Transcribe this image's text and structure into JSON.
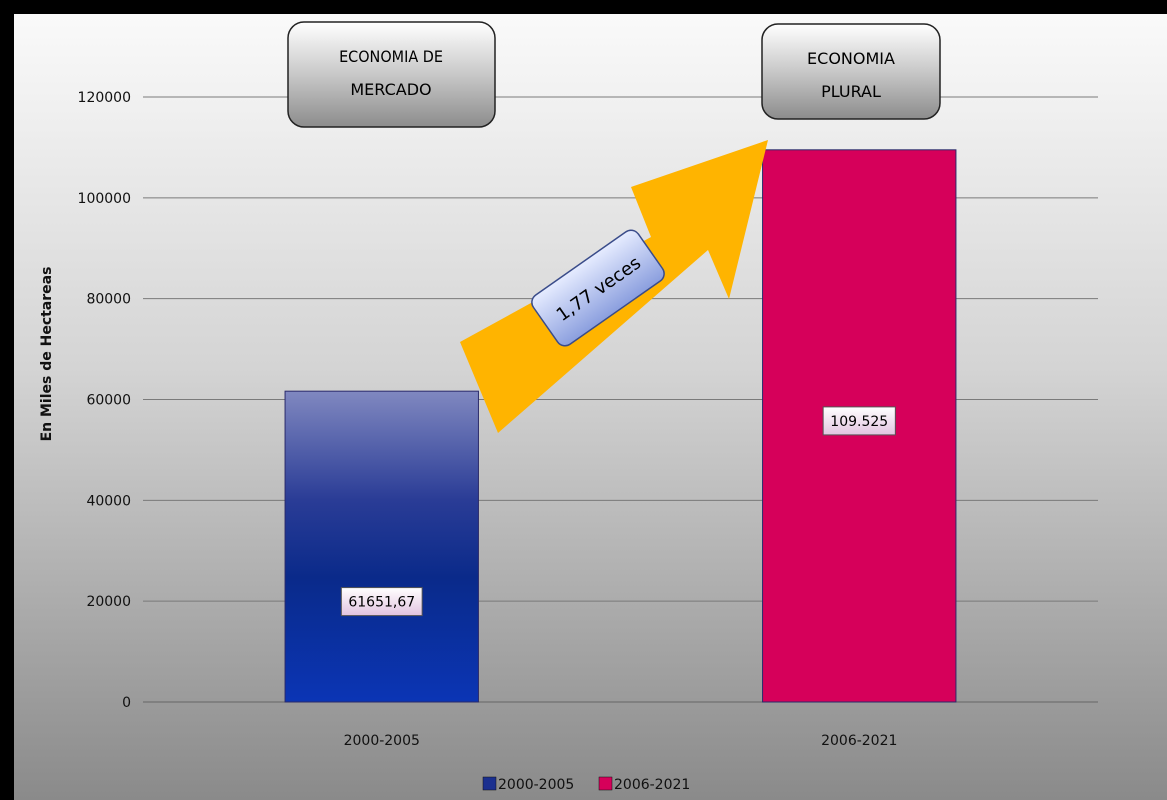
{
  "chart_data": {
    "type": "bar",
    "categories": [
      "2000-2005",
      "2006-2021"
    ],
    "values": [
      61651.67,
      109525
    ],
    "data_labels": [
      "61651,67",
      "109.525"
    ],
    "ylabel": "En Miles de Hectareas",
    "ylim": [
      0,
      120000
    ],
    "yticks": [
      0,
      20000,
      40000,
      60000,
      80000,
      100000,
      120000
    ],
    "grid": true,
    "legend": {
      "position": "bottom",
      "items": [
        {
          "label": "2000-2005",
          "color": "#1a2f8f"
        },
        {
          "label": "2006-2021",
          "color": "#d6005a"
        }
      ]
    },
    "bar_colors": [
      "#1a2f8f",
      "#d6005a"
    ],
    "annotations": {
      "left_box": [
        "ECONOMIA DE",
        "MERCADO"
      ],
      "right_box": [
        "ECONOMIA",
        "PLURAL"
      ],
      "arrow_label": "1,77 veces",
      "arrow_color": "#ffb400"
    }
  }
}
